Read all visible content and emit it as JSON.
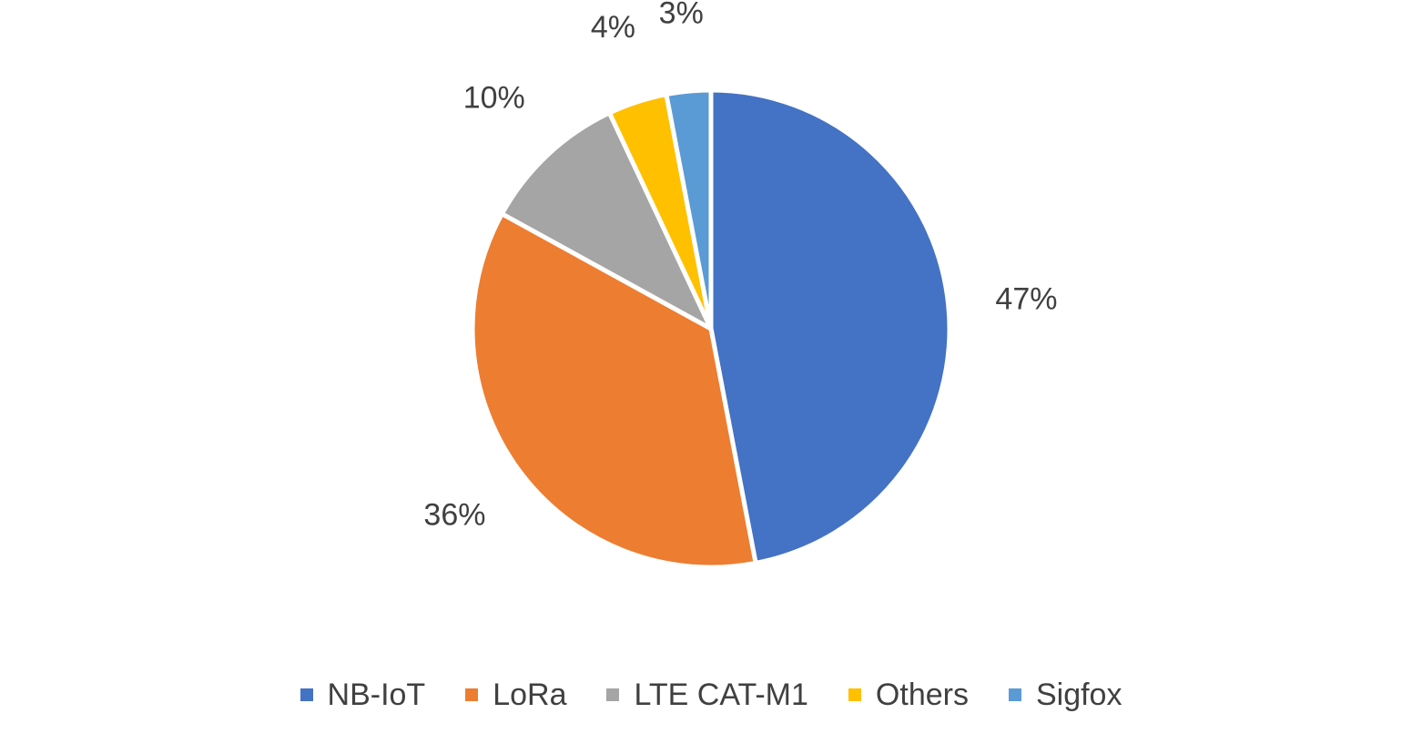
{
  "chart_data": {
    "type": "pie",
    "title": "",
    "legend_position": "bottom",
    "start_angle_deg": 0,
    "direction": "clockwise",
    "slices": [
      {
        "name": "NB-IoT",
        "value": 47,
        "label": "47%",
        "color": "#4472C4"
      },
      {
        "name": "LoRa",
        "value": 36,
        "label": "36%",
        "color": "#ED7D31"
      },
      {
        "name": "LTE CAT-M1",
        "value": 10,
        "label": "10%",
        "color": "#A5A5A5"
      },
      {
        "name": "Others",
        "value": 4,
        "label": "4%",
        "color": "#FFC000"
      },
      {
        "name": "Sigfox",
        "value": 3,
        "label": "3%",
        "color": "#5B9BD5"
      }
    ]
  }
}
